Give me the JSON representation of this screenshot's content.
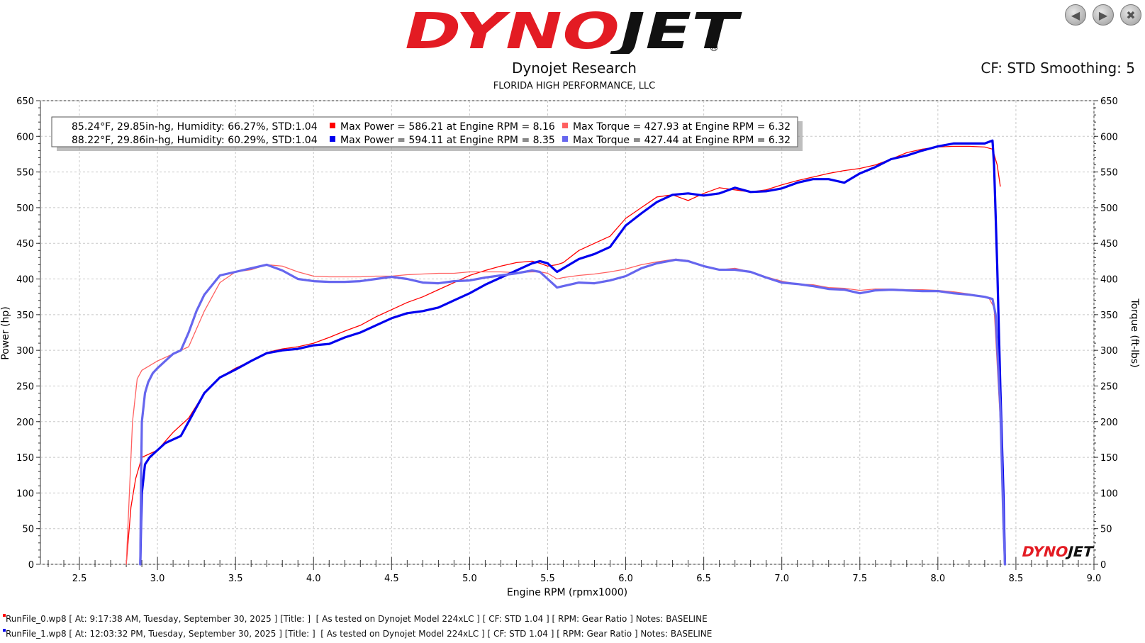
{
  "header": {
    "logo_text": "DYNOJET",
    "logo_mark": "®",
    "subtitle": "Dynojet Research",
    "company": "FLORIDA HIGH PERFORMANCE, LLC",
    "cf_info": "CF: STD Smoothing: 5"
  },
  "toolbar": {
    "back_icon": "back-arrow-icon",
    "forward_icon": "forward-arrow-icon",
    "close_icon": "close-icon"
  },
  "legend": {
    "rows": [
      {
        "conditions": "85.24°F, 29.85in-hg, Humidity: 66.27%, STD:1.04",
        "power_text": "Max Power = 586.21 at Engine RPM = 8.16",
        "torque_text": "Max Torque = 427.93 at Engine RPM = 6.32",
        "power_color": "#ff0000",
        "torque_color": "#ff6060"
      },
      {
        "conditions": "88.22°F, 29.86in-hg, Humidity: 60.29%, STD:1.04",
        "power_text": "Max Power = 594.11 at Engine RPM = 8.35",
        "torque_text": "Max Torque = 427.44 at Engine RPM = 6.32",
        "power_color": "#0000ee",
        "torque_color": "#6666ee"
      }
    ]
  },
  "footer": {
    "runs": [
      "RunFile_0.wp8 [ At: 9:17:38 AM, Tuesday, September 30, 2025 ] [Title: ]  [ As tested on Dynojet Model 224xLC ] [ CF: STD 1.04 ] [ RPM: Gear Ratio ] Notes: BASELINE",
      "RunFile_1.wp8 [ At: 12:03:32 PM, Tuesday, September 30, 2025 ] [Title: ]  [ As tested on Dynojet Model 224xLC ] [ CF: STD 1.04 ] [ RPM: Gear Ratio ] Notes: BASELINE"
    ],
    "colors": [
      "#ff0000",
      "#0000ee"
    ]
  },
  "chart_data": {
    "type": "line",
    "xlabel": "Engine RPM (rpmx1000)",
    "ylabel_left": "Power (hp)",
    "ylabel_right": "Torque (ft-lbs)",
    "xlim": [
      2.25,
      9.0
    ],
    "ylim": [
      0,
      650
    ],
    "xticks": [
      "2.5",
      "3.0",
      "3.5",
      "4.0",
      "4.5",
      "5.0",
      "5.5",
      "6.0",
      "6.5",
      "7.0",
      "7.5",
      "8.0",
      "8.5",
      "9.0"
    ],
    "yticks": [
      "0",
      "50",
      "100",
      "150",
      "200",
      "250",
      "300",
      "350",
      "400",
      "450",
      "500",
      "550",
      "600",
      "650"
    ],
    "grid": true,
    "watermark": "DYNOJET",
    "series": [
      {
        "name": "Max Power = 586.21 at Engine RPM = 8.16",
        "color": "#ff0000",
        "width": 1.3,
        "x": [
          2.8,
          2.83,
          2.86,
          2.9,
          3.0,
          3.1,
          3.2,
          3.3,
          3.4,
          3.5,
          3.6,
          3.7,
          3.8,
          3.9,
          4.0,
          4.1,
          4.2,
          4.3,
          4.4,
          4.5,
          4.6,
          4.7,
          4.8,
          4.9,
          5.0,
          5.1,
          5.2,
          5.3,
          5.4,
          5.45,
          5.5,
          5.56,
          5.6,
          5.7,
          5.8,
          5.9,
          6.0,
          6.1,
          6.2,
          6.3,
          6.4,
          6.5,
          6.6,
          6.7,
          6.8,
          6.9,
          7.0,
          7.1,
          7.2,
          7.3,
          7.4,
          7.5,
          7.6,
          7.7,
          7.8,
          7.9,
          8.0,
          8.1,
          8.16,
          8.2,
          8.3,
          8.35,
          8.38,
          8.4
        ],
        "y": [
          0,
          80,
          120,
          150,
          160,
          185,
          205,
          240,
          262,
          275,
          285,
          297,
          302,
          305,
          310,
          318,
          327,
          335,
          347,
          357,
          367,
          375,
          385,
          395,
          405,
          412,
          418,
          423,
          425,
          422,
          418,
          420,
          423,
          440,
          450,
          460,
          485,
          500,
          515,
          518,
          510,
          520,
          528,
          525,
          522,
          525,
          532,
          538,
          543,
          548,
          552,
          555,
          560,
          568,
          577,
          582,
          585,
          586,
          586,
          586,
          585,
          582,
          560,
          530
        ]
      },
      {
        "name": "Max Torque = 427.93 at Engine RPM = 6.32",
        "color": "#ff6060",
        "width": 1.3,
        "x": [
          2.8,
          2.82,
          2.84,
          2.87,
          2.9,
          3.0,
          3.1,
          3.2,
          3.3,
          3.4,
          3.5,
          3.6,
          3.7,
          3.8,
          3.9,
          4.0,
          4.1,
          4.2,
          4.3,
          4.4,
          4.5,
          4.6,
          4.7,
          4.8,
          4.9,
          5.0,
          5.1,
          5.2,
          5.3,
          5.4,
          5.45,
          5.5,
          5.56,
          5.6,
          5.7,
          5.8,
          5.9,
          6.0,
          6.1,
          6.2,
          6.32,
          6.4,
          6.5,
          6.6,
          6.7,
          6.8,
          6.9,
          7.0,
          7.1,
          7.2,
          7.3,
          7.4,
          7.5,
          7.6,
          7.7,
          7.8,
          7.9,
          8.0,
          8.1,
          8.2,
          8.3,
          8.33,
          8.36,
          8.4,
          8.43
        ],
        "y": [
          0,
          100,
          200,
          260,
          272,
          285,
          295,
          305,
          355,
          395,
          410,
          413,
          420,
          418,
          410,
          404,
          403,
          403,
          403,
          404,
          404,
          406,
          407,
          408,
          408,
          410,
          410,
          410,
          409,
          410,
          410,
          408,
          400,
          402,
          405,
          407,
          410,
          414,
          420,
          424,
          428,
          426,
          418,
          413,
          415,
          410,
          403,
          397,
          393,
          392,
          388,
          387,
          384,
          386,
          386,
          385,
          385,
          384,
          382,
          379,
          375,
          372,
          360,
          200,
          0
        ]
      },
      {
        "name": "Max Power = 594.11 at Engine RPM = 8.35",
        "color": "#0000ee",
        "width": 3.2,
        "x": [
          2.89,
          2.895,
          2.9,
          2.92,
          2.95,
          3.0,
          3.05,
          3.1,
          3.15,
          3.2,
          3.25,
          3.3,
          3.4,
          3.5,
          3.6,
          3.7,
          3.8,
          3.9,
          4.0,
          4.1,
          4.2,
          4.3,
          4.4,
          4.5,
          4.6,
          4.7,
          4.8,
          4.9,
          5.0,
          5.1,
          5.2,
          5.3,
          5.4,
          5.45,
          5.5,
          5.56,
          5.6,
          5.7,
          5.8,
          5.9,
          6.0,
          6.1,
          6.2,
          6.3,
          6.4,
          6.5,
          6.6,
          6.7,
          6.8,
          6.9,
          7.0,
          7.1,
          7.2,
          7.3,
          7.4,
          7.5,
          7.6,
          7.7,
          7.8,
          7.9,
          8.0,
          8.1,
          8.2,
          8.3,
          8.35,
          8.36,
          8.38,
          8.4,
          8.42,
          8.43
        ],
        "y": [
          0,
          60,
          100,
          140,
          150,
          160,
          170,
          175,
          180,
          200,
          220,
          240,
          262,
          273,
          285,
          296,
          300,
          302,
          307,
          309,
          318,
          325,
          335,
          345,
          352,
          355,
          360,
          370,
          380,
          392,
          402,
          412,
          422,
          425,
          422,
          410,
          415,
          428,
          435,
          445,
          475,
          492,
          508,
          518,
          520,
          517,
          520,
          528,
          522,
          523,
          527,
          535,
          540,
          540,
          535,
          548,
          557,
          568,
          573,
          580,
          586,
          590,
          590,
          590,
          594,
          560,
          420,
          250,
          100,
          0
        ]
      },
      {
        "name": "Max Torque = 427.44 at Engine RPM = 6.32",
        "color": "#6666ee",
        "width": 3.2,
        "x": [
          2.89,
          2.895,
          2.9,
          2.92,
          2.94,
          2.97,
          3.0,
          3.05,
          3.1,
          3.15,
          3.2,
          3.25,
          3.3,
          3.4,
          3.5,
          3.6,
          3.7,
          3.8,
          3.9,
          4.0,
          4.1,
          4.2,
          4.3,
          4.4,
          4.5,
          4.6,
          4.7,
          4.8,
          4.9,
          5.0,
          5.1,
          5.2,
          5.3,
          5.4,
          5.45,
          5.5,
          5.56,
          5.6,
          5.7,
          5.8,
          5.9,
          6.0,
          6.1,
          6.2,
          6.32,
          6.4,
          6.5,
          6.6,
          6.7,
          6.8,
          6.9,
          7.0,
          7.1,
          7.2,
          7.3,
          7.4,
          7.5,
          7.6,
          7.7,
          7.8,
          7.9,
          8.0,
          8.1,
          8.2,
          8.3,
          8.35,
          8.37,
          8.4,
          8.42,
          8.43
        ],
        "y": [
          0,
          120,
          200,
          240,
          255,
          268,
          275,
          285,
          295,
          300,
          325,
          355,
          378,
          405,
          410,
          415,
          420,
          412,
          400,
          397,
          396,
          396,
          397,
          400,
          403,
          400,
          395,
          394,
          397,
          398,
          402,
          405,
          408,
          412,
          410,
          400,
          388,
          390,
          395,
          394,
          398,
          404,
          415,
          422,
          427,
          425,
          418,
          413,
          413,
          410,
          402,
          395,
          393,
          390,
          386,
          385,
          380,
          384,
          385,
          384,
          383,
          383,
          380,
          378,
          375,
          372,
          350,
          220,
          60,
          0
        ]
      }
    ]
  }
}
